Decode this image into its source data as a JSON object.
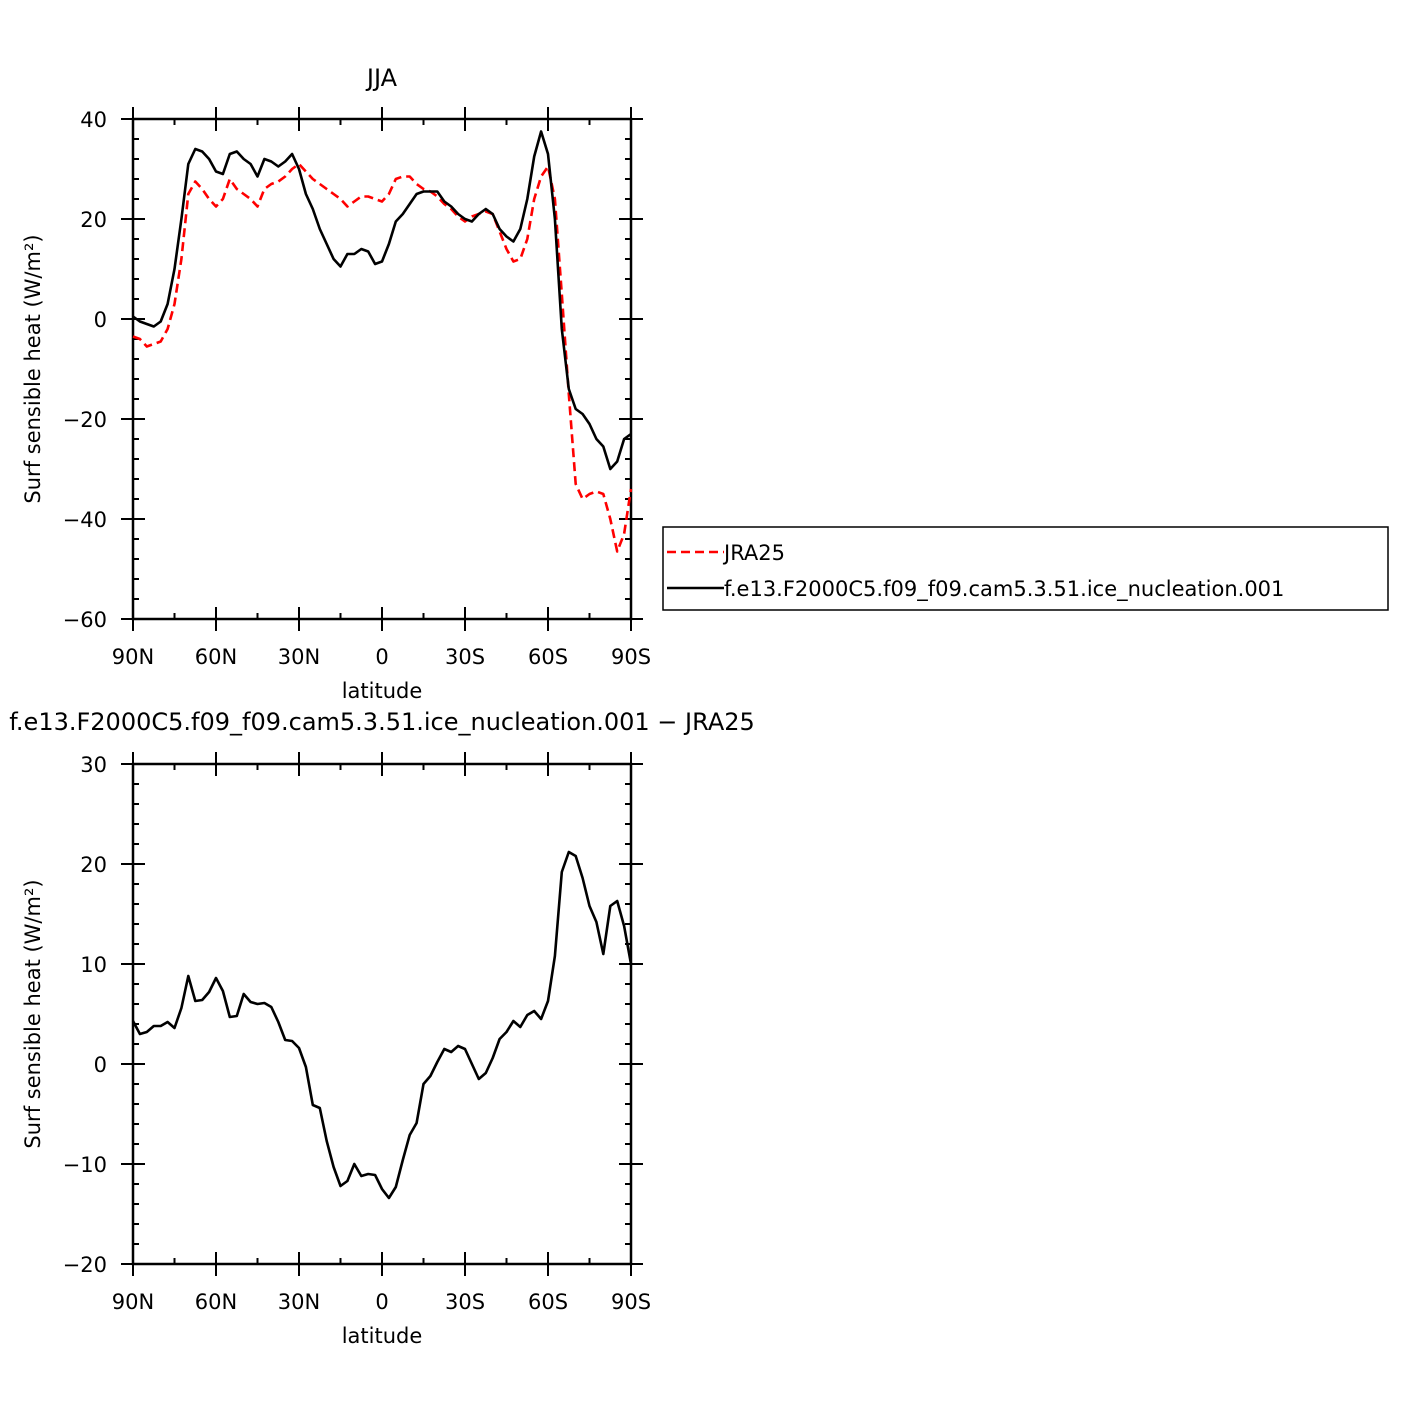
{
  "chart_data": [
    {
      "type": "line",
      "title": "JJA",
      "xlabel": "latitude",
      "ylabel": "Surf sensible heat (W/m²)",
      "xlim": [
        90,
        -90
      ],
      "ylim": [
        -60,
        40
      ],
      "xticks": [
        90,
        60,
        30,
        0,
        -30,
        -60,
        -90
      ],
      "xtick_labels": [
        "90N",
        "60N",
        "30N",
        "0",
        "30S",
        "60S",
        "90S"
      ],
      "yticks": [
        -60,
        -40,
        -20,
        0,
        20,
        40
      ],
      "ytick_labels": [
        "−60",
        "−40",
        "−20",
        "0",
        "20",
        "40"
      ],
      "legend": {
        "placement": "right-outside"
      },
      "series": [
        {
          "name": "JRA25",
          "color": "#ff0000",
          "dash": "dashed",
          "points": [
            [
              90,
              -3.5
            ],
            [
              87.5,
              -4
            ],
            [
              85,
              -5.5
            ],
            [
              82.5,
              -5
            ],
            [
              80,
              -4.5
            ],
            [
              77.5,
              -2
            ],
            [
              75,
              3
            ],
            [
              72.5,
              12
            ],
            [
              70,
              25
            ],
            [
              67.5,
              27.5
            ],
            [
              65,
              26
            ],
            [
              62.5,
              24
            ],
            [
              60,
              22.5
            ],
            [
              57.5,
              24
            ],
            [
              55,
              28
            ],
            [
              52.5,
              26
            ],
            [
              50,
              25
            ],
            [
              47.5,
              24
            ],
            [
              45,
              22.5
            ],
            [
              42.5,
              26
            ],
            [
              40,
              27
            ],
            [
              37.5,
              27.5
            ],
            [
              35,
              28.5
            ],
            [
              32.5,
              30
            ],
            [
              30,
              31
            ],
            [
              27.5,
              29.5
            ],
            [
              25,
              28
            ],
            [
              22.5,
              27
            ],
            [
              20,
              26
            ],
            [
              17.5,
              25
            ],
            [
              15,
              24
            ],
            [
              12.5,
              22.5
            ],
            [
              10,
              23.5
            ],
            [
              7.5,
              24.5
            ],
            [
              5,
              24.5
            ],
            [
              2.5,
              24
            ],
            [
              0,
              23.5
            ],
            [
              -2.5,
              25
            ],
            [
              -5,
              28
            ],
            [
              -7.5,
              28.5
            ],
            [
              -10,
              28.5
            ],
            [
              -12.5,
              27
            ],
            [
              -15,
              26
            ],
            [
              -17.5,
              25.5
            ],
            [
              -20,
              24.5
            ],
            [
              -22.5,
              23
            ],
            [
              -25,
              22
            ],
            [
              -27.5,
              20.5
            ],
            [
              -30,
              19.5
            ],
            [
              -32.5,
              20.5
            ],
            [
              -35,
              21
            ],
            [
              -37.5,
              21.5
            ],
            [
              -40,
              21
            ],
            [
              -42.5,
              17.5
            ],
            [
              -45,
              14
            ],
            [
              -47.5,
              11.5
            ],
            [
              -50,
              12
            ],
            [
              -52.5,
              16
            ],
            [
              -55,
              24
            ],
            [
              -57.5,
              28.5
            ],
            [
              -60,
              30.5
            ],
            [
              -62.5,
              24
            ],
            [
              -65,
              5
            ],
            [
              -67.5,
              -15
            ],
            [
              -70,
              -33
            ],
            [
              -72.5,
              -36
            ],
            [
              -75,
              -35
            ],
            [
              -77.5,
              -34.5
            ],
            [
              -80,
              -35
            ],
            [
              -82.5,
              -40
            ],
            [
              -85,
              -46.5
            ],
            [
              -87.5,
              -43
            ],
            [
              -90,
              -34
            ]
          ]
        },
        {
          "name": "f.e13.F2000C5.f09_f09.cam5.3.51.ice_nucleation.001",
          "color": "#000000",
          "dash": "solid",
          "points": [
            [
              90,
              0.5
            ],
            [
              87.5,
              -0.5
            ],
            [
              85,
              -1
            ],
            [
              82.5,
              -1.5
            ],
            [
              80,
              -0.5
            ],
            [
              77.5,
              3
            ],
            [
              75,
              10
            ],
            [
              72.5,
              20
            ],
            [
              70,
              31
            ],
            [
              67.5,
              34
            ],
            [
              65,
              33.5
            ],
            [
              62.5,
              32
            ],
            [
              60,
              29.5
            ],
            [
              57.5,
              29
            ],
            [
              55,
              33
            ],
            [
              52.5,
              33.5
            ],
            [
              50,
              32
            ],
            [
              47.5,
              31
            ],
            [
              45,
              28.5
            ],
            [
              42.5,
              32
            ],
            [
              40,
              31.5
            ],
            [
              37.5,
              30.5
            ],
            [
              35,
              31.5
            ],
            [
              32.5,
              33
            ],
            [
              30,
              30
            ],
            [
              27.5,
              25
            ],
            [
              25,
              22
            ],
            [
              22.5,
              18
            ],
            [
              20,
              15
            ],
            [
              17.5,
              12
            ],
            [
              15,
              10.5
            ],
            [
              12.5,
              13
            ],
            [
              10,
              13
            ],
            [
              7.5,
              14
            ],
            [
              5,
              13.5
            ],
            [
              2.5,
              11
            ],
            [
              0,
              11.5
            ],
            [
              -2.5,
              15
            ],
            [
              -5,
              19.5
            ],
            [
              -7.5,
              21
            ],
            [
              -10,
              23
            ],
            [
              -12.5,
              25
            ],
            [
              -15,
              25.5
            ],
            [
              -17.5,
              25.5
            ],
            [
              -20,
              25.5
            ],
            [
              -22.5,
              23.5
            ],
            [
              -25,
              22.5
            ],
            [
              -27.5,
              21
            ],
            [
              -30,
              20
            ],
            [
              -32.5,
              19.5
            ],
            [
              -35,
              21
            ],
            [
              -37.5,
              22
            ],
            [
              -40,
              21
            ],
            [
              -42.5,
              18
            ],
            [
              -45,
              16.5
            ],
            [
              -47.5,
              15.5
            ],
            [
              -50,
              18
            ],
            [
              -52.5,
              24
            ],
            [
              -55,
              32.5
            ],
            [
              -57.5,
              37.5
            ],
            [
              -60,
              33
            ],
            [
              -62.5,
              20
            ],
            [
              -65,
              -2
            ],
            [
              -67.5,
              -14
            ],
            [
              -70,
              -18
            ],
            [
              -72.5,
              -19
            ],
            [
              -75,
              -21
            ],
            [
              -77.5,
              -24
            ],
            [
              -80,
              -25.5
            ],
            [
              -82.5,
              -30
            ],
            [
              -85,
              -28.5
            ],
            [
              -87.5,
              -24
            ],
            [
              -90,
              -23
            ]
          ]
        }
      ]
    },
    {
      "type": "line",
      "title": "f.e13.F2000C5.f09_f09.cam5.3.51.ice_nucleation.001 − JRA25",
      "xlabel": "latitude",
      "ylabel": "Surf sensible heat (W/m²)",
      "xlim": [
        90,
        -90
      ],
      "ylim": [
        -20,
        30
      ],
      "xticks": [
        90,
        60,
        30,
        0,
        -30,
        -60,
        -90
      ],
      "xtick_labels": [
        "90N",
        "60N",
        "30N",
        "0",
        "30S",
        "60S",
        "90S"
      ],
      "yticks": [
        -20,
        -10,
        0,
        10,
        20,
        30
      ],
      "ytick_labels": [
        "−20",
        "−10",
        "0",
        "10",
        "20",
        "30"
      ],
      "series": [
        {
          "color": "#000000",
          "dash": "solid",
          "points": [
            [
              90,
              4.3
            ],
            [
              87.5,
              3
            ],
            [
              85,
              3.2
            ],
            [
              82.5,
              3.8
            ],
            [
              80,
              3.8
            ],
            [
              77.5,
              4.2
            ],
            [
              75,
              3.6
            ],
            [
              72.5,
              5.6
            ],
            [
              70,
              8.8
            ],
            [
              67.5,
              6.3
            ],
            [
              65,
              6.4
            ],
            [
              62.5,
              7.2
            ],
            [
              60,
              8.6
            ],
            [
              57.5,
              7.3
            ],
            [
              55,
              4.7
            ],
            [
              52.5,
              4.8
            ],
            [
              50,
              7
            ],
            [
              47.5,
              6.2
            ],
            [
              45,
              6
            ],
            [
              42.5,
              6.1
            ],
            [
              40,
              5.7
            ],
            [
              37.5,
              4.2
            ],
            [
              35,
              2.4
            ],
            [
              32.5,
              2.3
            ],
            [
              30,
              1.6
            ],
            [
              27.5,
              -0.3
            ],
            [
              25,
              -4.1
            ],
            [
              22.5,
              -4.4
            ],
            [
              20,
              -7.7
            ],
            [
              17.5,
              -10.3
            ],
            [
              15,
              -12.2
            ],
            [
              12.5,
              -11.7
            ],
            [
              10,
              -10
            ],
            [
              7.5,
              -11.2
            ],
            [
              5,
              -11
            ],
            [
              2.5,
              -11.1
            ],
            [
              0,
              -12.5
            ],
            [
              -2.5,
              -13.4
            ],
            [
              -5,
              -12.3
            ],
            [
              -7.5,
              -9.6
            ],
            [
              -10,
              -7.1
            ],
            [
              -12.5,
              -5.9
            ],
            [
              -15,
              -2
            ],
            [
              -17.5,
              -1.2
            ],
            [
              -20,
              0.2
            ],
            [
              -22.5,
              1.5
            ],
            [
              -25,
              1.2
            ],
            [
              -27.5,
              1.8
            ],
            [
              -30,
              1.5
            ],
            [
              -32.5,
              0
            ],
            [
              -35,
              -1.5
            ],
            [
              -37.5,
              -0.9
            ],
            [
              -40,
              0.6
            ],
            [
              -42.5,
              2.5
            ],
            [
              -45,
              3.2
            ],
            [
              -47.5,
              4.3
            ],
            [
              -50,
              3.7
            ],
            [
              -52.5,
              4.9
            ],
            [
              -55,
              5.3
            ],
            [
              -57.5,
              4.5
            ],
            [
              -60,
              6.3
            ],
            [
              -62.5,
              10.8
            ],
            [
              -65,
              19.2
            ],
            [
              -67.5,
              21.2
            ],
            [
              -70,
              20.8
            ],
            [
              -72.5,
              18.6
            ],
            [
              -75,
              15.8
            ],
            [
              -77.5,
              14.2
            ],
            [
              -80,
              11
            ],
            [
              -82.5,
              15.8
            ],
            [
              -85,
              16.3
            ],
            [
              -87.5,
              13.8
            ],
            [
              -90,
              10
            ]
          ]
        }
      ]
    }
  ]
}
